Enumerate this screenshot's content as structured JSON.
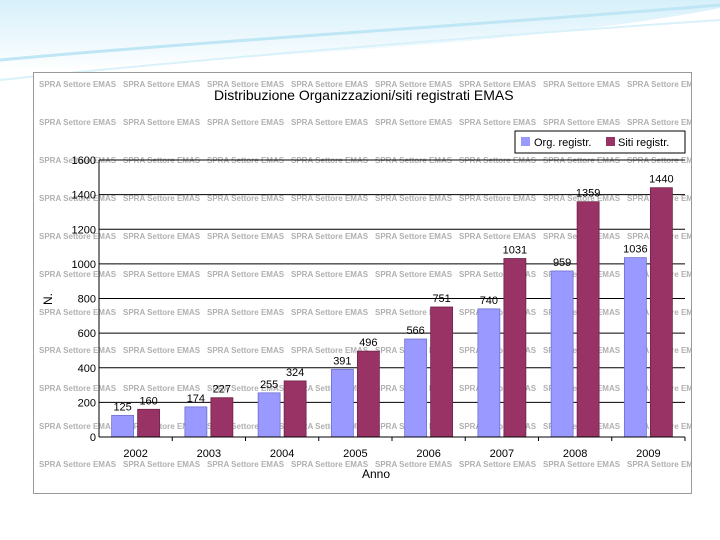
{
  "colors": {
    "series_org": "#9999ff",
    "series_siti": "#993366",
    "plot_bg": "#ffffff",
    "grid": "#000000",
    "banner_light": "#e8f6fc",
    "banner_mid": "#bfe6f5"
  },
  "watermark": "SPRA Settore EMAS",
  "chart_data": {
    "type": "bar",
    "title": "Distribuzione Organizzazioni/siti registrati EMAS",
    "xlabel": "Anno",
    "ylabel": "N.",
    "ylim": [
      0,
      1600
    ],
    "yticks": [
      "0",
      "200",
      "400",
      "600",
      "800",
      "1000",
      "1200",
      "1400",
      "1600"
    ],
    "categories": [
      "2002",
      "2003",
      "2004",
      "2005",
      "2006",
      "2007",
      "2008",
      "2009"
    ],
    "grid": true,
    "legend": "top-right",
    "series": [
      {
        "name": "Org. registr.",
        "values": [
          125,
          174,
          255,
          391,
          566,
          740,
          959,
          1036
        ]
      },
      {
        "name": "Siti registr.",
        "values": [
          160,
          227,
          324,
          496,
          751,
          1031,
          1359,
          1440
        ]
      }
    ]
  }
}
